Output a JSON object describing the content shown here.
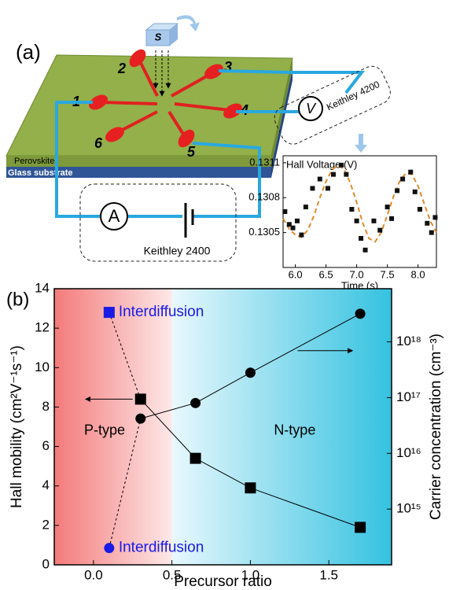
{
  "panel_a": {
    "label": "(a)",
    "sample": "S",
    "contacts": [
      "1",
      "2",
      "3",
      "4",
      "5",
      "6"
    ],
    "layers": [
      "Perovskite",
      "Glass substrate"
    ],
    "voltmeter": "V",
    "voltmeter_source": "Keithley 4200",
    "ammeter": "A",
    "current_source": "Keithley 2400"
  },
  "chart_data": [
    {
      "type": "scatter",
      "title": "Hall Voltage (V)",
      "x_label": "Time (s)",
      "xlim": [
        5.8,
        8.3
      ],
      "xticks": [
        {
          "value": 6,
          "label": "6.0"
        },
        6.5,
        {
          "value": 7,
          "label": "7.0"
        },
        7.5,
        {
          "value": 8,
          "label": "8.0"
        }
      ],
      "ylim": [
        0.1302,
        0.13116
      ],
      "yticks": [
        0.1305,
        0.1308,
        0.1311
      ],
      "points": {
        "color": "#111111",
        "x": [
          5.83,
          5.9,
          5.96,
          6.03,
          6.1,
          6.17,
          6.28,
          6.4,
          6.53,
          6.62,
          6.75,
          6.83,
          6.92,
          7.0,
          7.07,
          7.14,
          7.28,
          7.38,
          7.5,
          7.57,
          7.66,
          7.75,
          7.88,
          7.95,
          8.03,
          8.15,
          8.22,
          8.28
        ],
        "values": [
          0.13068,
          0.13057,
          0.13054,
          0.1306,
          0.13048,
          0.13072,
          0.13088,
          0.13096,
          0.13088,
          0.131,
          0.13108,
          0.131,
          0.1307,
          0.1306,
          0.13045,
          0.13035,
          0.1306,
          0.13052,
          0.13072,
          0.13062,
          0.13086,
          0.13096,
          0.13102,
          0.13085,
          0.1307,
          0.13058,
          0.1305,
          0.13063
        ]
      },
      "fit": {
        "color": "#e08a2c",
        "style": "dashed",
        "x": [
          5.8,
          5.9,
          6.0,
          6.1,
          6.2,
          6.3,
          6.4,
          6.5,
          6.6,
          6.7,
          6.8,
          6.9,
          7.0,
          7.1,
          7.2,
          7.3,
          7.4,
          7.5,
          7.6,
          7.7,
          7.8,
          7.9,
          8.0,
          8.1,
          8.2,
          8.3
        ],
        "values": [
          0.13062,
          0.13053,
          0.13048,
          0.13046,
          0.13052,
          0.13064,
          0.1308,
          0.13094,
          0.13104,
          0.13108,
          0.13104,
          0.13092,
          0.13076,
          0.13058,
          0.13045,
          0.13042,
          0.1305,
          0.13065,
          0.13081,
          0.13094,
          0.13101,
          0.131,
          0.1309,
          0.13075,
          0.1306,
          0.1305
        ]
      }
    },
    {
      "type": "line",
      "label": "(b)",
      "x_label": "Precursor ratio",
      "y_label": "Hall mobility (cm²V⁻¹s⁻¹)",
      "y2_label": "Carrier concentration (cm⁻³)",
      "xlim": [
        -0.25,
        1.9
      ],
      "xticks": [
        {
          "value": 0,
          "label": "0.0"
        },
        0.5,
        {
          "value": 1,
          "label": "1.0"
        },
        1.5
      ],
      "ylim": [
        0,
        14
      ],
      "yticks": [
        0,
        2,
        4,
        6,
        8,
        10,
        12,
        14
      ],
      "y2_scale": "log",
      "y2lim": [
        100000000000000.0,
        9e+18
      ],
      "y2ticks": [
        {
          "value": 1000000000000000.0,
          "label": "10¹⁵"
        },
        {
          "value": 1e+16,
          "label": "10¹⁶"
        },
        {
          "value": 1e+17,
          "label": "10¹⁷"
        },
        {
          "value": 1e+18,
          "label": "10¹⁸"
        }
      ],
      "regions": [
        {
          "label": "P-type",
          "x": [
            -0.25,
            0.5
          ],
          "colors": [
            "#f47a7a",
            "#fde8e8"
          ]
        },
        {
          "label": "N-type",
          "x": [
            0.5,
            1.9
          ],
          "colors": [
            "#e8f8fd",
            "#34c2e0"
          ]
        }
      ],
      "mobility": {
        "marker": "square",
        "color": "#000000",
        "x": [
          0.3,
          0.65,
          1.0,
          1.7
        ],
        "values": [
          8.4,
          5.4,
          3.9,
          1.9
        ]
      },
      "carrier": {
        "marker": "circle",
        "axis": "y2",
        "color": "#000000",
        "x": [
          0.3,
          0.65,
          1.0,
          1.7
        ],
        "values": [
          4.2e+16,
          8e+16,
          2.8e+17,
          3.2e+18
        ]
      },
      "interdiffusion": [
        {
          "label": "Interdiffusion",
          "marker": "square",
          "color": "#1a1ae6",
          "x": 0.1,
          "value": 12.8
        },
        {
          "label": "Interdiffusion",
          "marker": "circle",
          "axis": "y2",
          "color": "#1a1ae6",
          "x": 0.1,
          "value": 200000000000000.0
        }
      ]
    }
  ]
}
